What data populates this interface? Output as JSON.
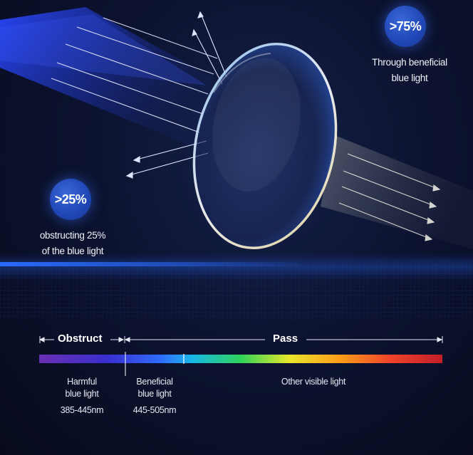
{
  "badges": {
    "left": ">25%",
    "right": ">75%"
  },
  "captions": {
    "left": [
      "obstructing 25%",
      "of the blue light"
    ],
    "right": [
      "Through beneficial",
      "blue light"
    ]
  },
  "spectrum_bar": {
    "obstruct_label": "Obstruct",
    "pass_label": "Pass"
  },
  "spectrum_labels": {
    "harmful": [
      "Harmful",
      "blue light"
    ],
    "harmful_range": "385-445nm",
    "beneficial": [
      "Beneficial",
      "blue light"
    ],
    "beneficial_range": "445-505nm",
    "other": "Other visible light"
  },
  "colors": {
    "background": "#0a0e22",
    "badge_blue": "#1f46b4",
    "beam_blue": "#1e3dd6",
    "horizon_glow": "#2a6bff"
  }
}
